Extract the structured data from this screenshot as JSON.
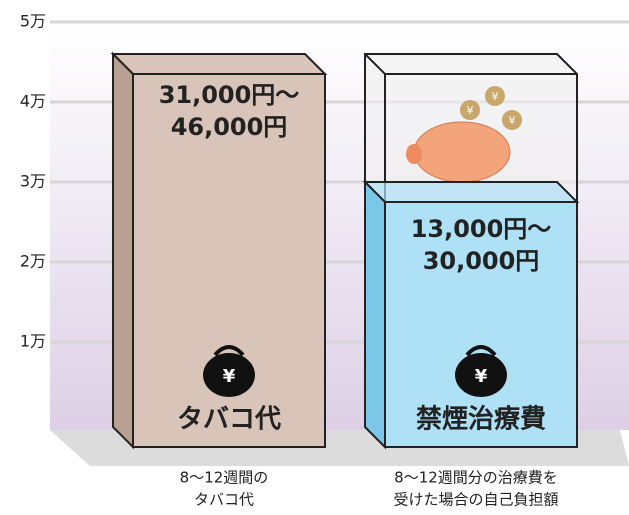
{
  "chart_data": {
    "type": "bar",
    "categories": [
      [
        "8～12週間の",
        "タバコ代"
      ],
      [
        "8～12週間分の治療費を",
        "受けた場合の自己負担額"
      ]
    ],
    "bar_names": [
      "タバコ代",
      "禁煙治療費"
    ],
    "values": [
      46000,
      30000
    ],
    "value_labels": [
      [
        "31,000円～",
        "46,000円"
      ],
      [
        "13,000円～",
        "30,000円"
      ]
    ],
    "colors": [
      "#d8c4b8",
      "#aee0f6"
    ],
    "ylim": [
      0,
      50000
    ],
    "yticks": [
      {
        "value": 10000,
        "label": "1万"
      },
      {
        "value": 20000,
        "label": "2万"
      },
      {
        "value": 30000,
        "label": "3万"
      },
      {
        "value": 40000,
        "label": "4万"
      },
      {
        "value": 50000,
        "label": "5万"
      }
    ],
    "grid": true
  }
}
